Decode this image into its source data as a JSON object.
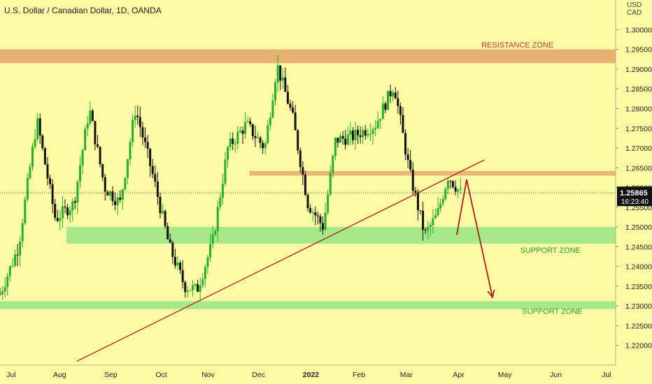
{
  "header": {
    "title": "U.S. Dollar / Canadian Dollar, 1D, OANDA"
  },
  "currency": {
    "line1": "USD",
    "line2": "CAD"
  },
  "colors": {
    "background": "#fdfba4",
    "resistance": "#e8b071",
    "support": "#a6e88a",
    "candle_up": "#22b02a",
    "candle_down": "#111111",
    "trendline": "#b31b1b",
    "arrow": "#b31b1b",
    "price_box": "#111111",
    "resistance_label": "#c0392b",
    "support_label": "#26a61f"
  },
  "chart_data": {
    "type": "candlestick",
    "title": "U.S. Dollar / Canadian Dollar, 1D, OANDA",
    "ylim": [
      1.215,
      1.3075
    ],
    "y_ticks": [
      "1.30000",
      "1.29500",
      "1.29000",
      "1.28500",
      "1.28000",
      "1.27500",
      "1.27000",
      "1.26500",
      "1.26000",
      "1.25500",
      "1.25000",
      "1.24500",
      "1.24000",
      "1.23500",
      "1.23000",
      "1.22500",
      "1.22000"
    ],
    "x_ticks": [
      "Jul",
      "Aug",
      "Sep",
      "Oct",
      "Nov",
      "Dec",
      "2022",
      "Feb",
      "Mar",
      "Apr",
      "May",
      "Jun",
      "Jul"
    ],
    "current_price": {
      "label": "1.25865",
      "value": 1.25865,
      "countdown": "16:23:40"
    },
    "zones": [
      {
        "name": "resistance-zone",
        "label": "RESISTANCE ZONE",
        "y_from": 1.2915,
        "y_to": 1.295,
        "label_value": 1.2955
      },
      {
        "name": "mid-resistance",
        "label": "",
        "y_from": 1.263,
        "y_to": 1.2642
      },
      {
        "name": "support-zone-upper",
        "label": "SUPPORT ZONE",
        "y_from": 1.2458,
        "y_to": 1.25,
        "label_value": 1.2435
      },
      {
        "name": "support-zone-lower",
        "label": "SUPPORT ZONE",
        "y_from": 1.2292,
        "y_to": 1.2312,
        "label_value": 1.228
      }
    ],
    "trendline": {
      "from": {
        "t": 0.125,
        "y": 1.216
      },
      "to": {
        "t": 0.787,
        "y": 1.267
      }
    },
    "projection": [
      {
        "t": 0.742,
        "y": 1.248
      },
      {
        "t": 0.758,
        "y": 1.262
      },
      {
        "t": 0.8,
        "y": 1.2322
      }
    ],
    "anchors": [
      {
        "t": 0.0,
        "y": 1.233
      },
      {
        "t": 0.03,
        "y": 1.245
      },
      {
        "t": 0.06,
        "y": 1.277
      },
      {
        "t": 0.09,
        "y": 1.252
      },
      {
        "t": 0.12,
        "y": 1.256
      },
      {
        "t": 0.145,
        "y": 1.28
      },
      {
        "t": 0.17,
        "y": 1.26
      },
      {
        "t": 0.195,
        "y": 1.256
      },
      {
        "t": 0.22,
        "y": 1.28
      },
      {
        "t": 0.25,
        "y": 1.262
      },
      {
        "t": 0.275,
        "y": 1.245
      },
      {
        "t": 0.3,
        "y": 1.235
      },
      {
        "t": 0.32,
        "y": 1.234
      },
      {
        "t": 0.345,
        "y": 1.246
      },
      {
        "t": 0.37,
        "y": 1.27
      },
      {
        "t": 0.4,
        "y": 1.276
      },
      {
        "t": 0.43,
        "y": 1.27
      },
      {
        "t": 0.45,
        "y": 1.291
      },
      {
        "t": 0.475,
        "y": 1.278
      },
      {
        "t": 0.5,
        "y": 1.256
      },
      {
        "t": 0.525,
        "y": 1.25
      },
      {
        "t": 0.545,
        "y": 1.272
      },
      {
        "t": 0.575,
        "y": 1.273
      },
      {
        "t": 0.61,
        "y": 1.276
      },
      {
        "t": 0.64,
        "y": 1.286
      },
      {
        "t": 0.665,
        "y": 1.264
      },
      {
        "t": 0.69,
        "y": 1.248
      },
      {
        "t": 0.71,
        "y": 1.253
      },
      {
        "t": 0.728,
        "y": 1.263
      },
      {
        "t": 0.748,
        "y": 1.2586
      }
    ]
  }
}
